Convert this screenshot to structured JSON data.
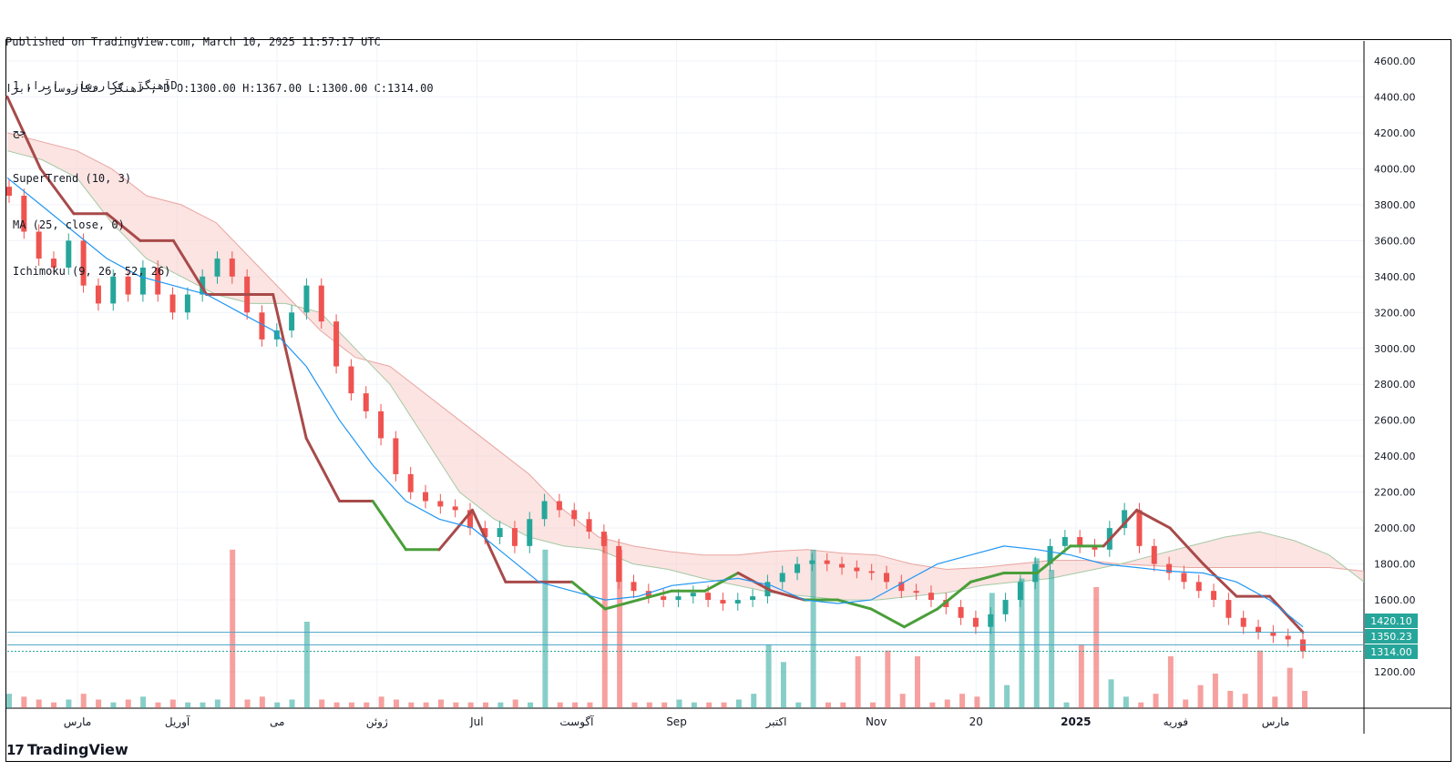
{
  "header": {
    "line1": "Published on TradingView.com, March 10, 2025 11:57:17 UTC",
    "line2": "آهنگر  تکاروساز  ابرا , D O:1300.00 H:1367.00 L:1300.00 C:1314.00"
  },
  "legend": {
    "symbol": "آهنگر  تکاروساز  ابرا, 1D",
    "exchange": "جح",
    "supertrend": "SuperTrend (10, 3)",
    "ma": "MA (25, close, 0)",
    "ichimoku": "Ichimoku (9, 26, 52, 26)"
  },
  "brand": {
    "name": "TradingView",
    "logo": "tv-logo-icon"
  },
  "colors": {
    "up": "#26a69a",
    "down": "#ef5350",
    "supertrend_down": "#a84a4a",
    "supertrend_up": "#4a9e3a",
    "ma": "#2196f3",
    "cloud_bear": "#f7c9c6",
    "cloud_bull": "#c8e6c9",
    "label_bg": "#26a69a"
  },
  "chart_data": {
    "type": "candlestick",
    "title": "آهنگر  تکاروساز  ابرا, 1D",
    "ylim": [
      1000,
      4700
    ],
    "y_ticks": [
      1200,
      1400,
      1600,
      1800,
      2000,
      2200,
      2400,
      2600,
      2800,
      3000,
      3200,
      3400,
      3600,
      3800,
      4000,
      4200,
      4400,
      4600
    ],
    "x_labels": [
      "مارس",
      "آوریل",
      "می",
      "ژوئن",
      "Jul",
      "آگوست",
      "Sep",
      "اکتبر",
      "Nov",
      "20",
      "2025",
      "فوریه",
      "مارس"
    ],
    "price_labels": [
      {
        "value": 1420.1,
        "text": "1420.10"
      },
      {
        "value": 1350.23,
        "text": "1350.23"
      },
      {
        "value": 1314.0,
        "text": "1314.00"
      }
    ],
    "horizontal_lines": [
      1420.1,
      1350.23,
      1314.0
    ],
    "close_path": [
      3850,
      3650,
      3500,
      3450,
      3600,
      3350,
      3250,
      3400,
      3300,
      3450,
      3300,
      3200,
      3300,
      3400,
      3500,
      3400,
      3200,
      3050,
      3100,
      3200,
      3350,
      3150,
      2900,
      2750,
      2650,
      2500,
      2300,
      2200,
      2150,
      2120,
      2100,
      2000,
      1950,
      2000,
      1900,
      2050,
      2150,
      2100,
      2050,
      1980,
      1900,
      1700,
      1650,
      1620,
      1600,
      1620,
      1640,
      1600,
      1580,
      1600,
      1620,
      1700,
      1750,
      1800,
      1820,
      1800,
      1780,
      1760,
      1750,
      1700,
      1650,
      1640,
      1600,
      1560,
      1500,
      1450,
      1520,
      1600,
      1700,
      1800,
      1900,
      1950,
      1900,
      1880,
      2000,
      2100,
      1900,
      1800,
      1750,
      1700,
      1650,
      1600,
      1500,
      1450,
      1420,
      1400,
      1380,
      1314
    ],
    "supertrend": [
      4400,
      4000,
      3750,
      3750,
      3600,
      3600,
      3300,
      3300,
      3300,
      2500,
      2150,
      2150,
      1880,
      1880,
      2100,
      1700,
      1700,
      1700,
      1550,
      1600,
      1650,
      1650,
      1750,
      1650,
      1600,
      1600,
      1550,
      1450,
      1550,
      1700,
      1750,
      1750,
      1900,
      1900,
      2100,
      2000,
      1800,
      1620,
      1620,
      1420
    ],
    "supertrend_trend": [
      "down",
      "down",
      "down",
      "down",
      "down",
      "down",
      "down",
      "down",
      "down",
      "down",
      "down",
      "down",
      "up",
      "up",
      "down",
      "down",
      "down",
      "down",
      "up",
      "up",
      "up",
      "up",
      "up",
      "down",
      "down",
      "up",
      "up",
      "up",
      "up",
      "up",
      "up",
      "up",
      "up",
      "up",
      "down",
      "down",
      "down",
      "down",
      "down",
      "down"
    ],
    "ma": [
      3950,
      3800,
      3650,
      3500,
      3400,
      3350,
      3300,
      3200,
      3100,
      2900,
      2600,
      2350,
      2150,
      2050,
      2000,
      1850,
      1700,
      1650,
      1600,
      1620,
      1680,
      1700,
      1720,
      1680,
      1600,
      1580,
      1600,
      1700,
      1800,
      1850,
      1900,
      1880,
      1850,
      1800,
      1780,
      1760,
      1750,
      1700,
      1600,
      1450
    ],
    "ichimoku_upper": [
      4200,
      4150,
      4100,
      4000,
      3850,
      3800,
      3700,
      3500,
      3300,
      3100,
      2950,
      2900,
      2750,
      2600,
      2450,
      2300,
      2100,
      1950,
      1900,
      1870,
      1850,
      1850,
      1870,
      1880,
      1860,
      1850,
      1800,
      1770,
      1780,
      1800,
      1820,
      1820,
      1800,
      1790,
      1780,
      1780,
      1780,
      1780,
      1780,
      1760
    ],
    "ichimoku_lower": [
      4100,
      4050,
      3950,
      3700,
      3500,
      3400,
      3300,
      3250,
      3250,
      3200,
      3000,
      2800,
      2500,
      2200,
      2050,
      1950,
      1900,
      1880,
      1800,
      1770,
      1720,
      1680,
      1640,
      1620,
      1600,
      1600,
      1620,
      1640,
      1680,
      1700,
      1720,
      1760,
      1800,
      1850,
      1900,
      1950,
      1980,
      1930,
      1850,
      1700
    ],
    "volume": [
      5,
      4,
      3,
      2,
      3,
      5,
      3,
      2,
      3,
      4,
      2,
      3,
      2,
      2,
      3,
      55,
      3,
      4,
      2,
      3,
      30,
      3,
      2,
      2,
      2,
      4,
      3,
      2,
      2,
      3,
      2,
      2,
      2,
      2,
      3,
      2,
      55,
      2,
      2,
      2,
      60,
      55,
      2,
      2,
      2,
      3,
      2,
      2,
      2,
      3,
      5,
      22,
      16,
      2,
      55,
      2,
      2,
      18,
      2,
      20,
      5,
      18,
      2,
      3,
      5,
      4,
      40,
      8,
      45,
      52,
      48,
      2,
      22,
      42,
      10,
      4,
      2,
      5,
      18,
      3,
      8,
      12,
      6,
      5,
      20,
      4,
      14,
      6
    ]
  }
}
